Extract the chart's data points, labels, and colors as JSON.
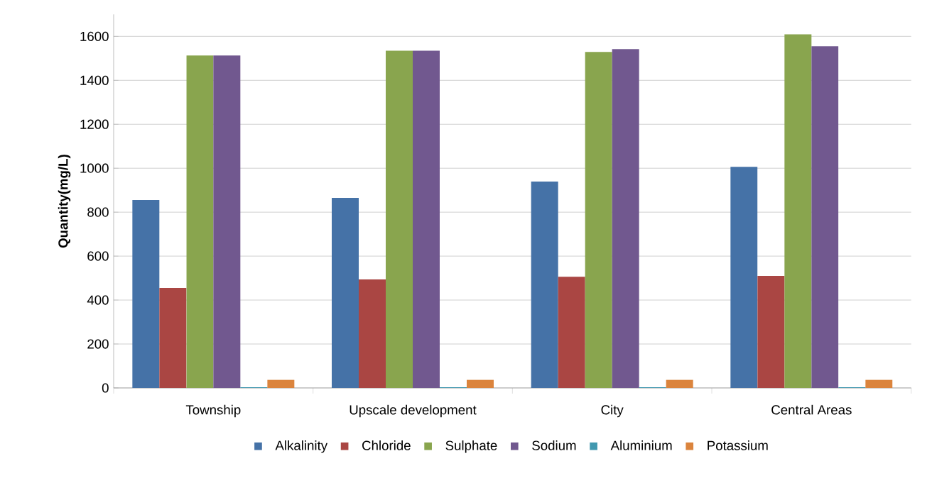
{
  "chart_data": {
    "type": "bar",
    "ylabel": "**Quantity(mg/L)**",
    "categories": [
      "Township",
      "Upscale development",
      "City",
      "Central Areas"
    ],
    "series": [
      {
        "name": "Alkalinity",
        "color": "#4572a7",
        "values": [
          855,
          865,
          939,
          1006
        ]
      },
      {
        "name": "Chloride",
        "color": "#aa4643",
        "values": [
          455,
          494,
          506,
          510
        ]
      },
      {
        "name": "Sulphate",
        "color": "#89a54e",
        "values": [
          1513,
          1535,
          1529,
          1610
        ]
      },
      {
        "name": "Sodium",
        "color": "#71588f",
        "values": [
          1513,
          1535,
          1542,
          1555
        ]
      },
      {
        "name": "Aluminium",
        "color": "#4198af",
        "values": [
          3,
          3,
          3,
          3
        ]
      },
      {
        "name": "Potassium",
        "color": "#db843d",
        "values": [
          37,
          37,
          37,
          37
        ]
      }
    ],
    "ylim": [
      0,
      1700
    ],
    "yticks": [
      0,
      200,
      400,
      600,
      800,
      1000,
      1200,
      1400,
      1600
    ],
    "grid": "y",
    "legend": "bottom"
  }
}
